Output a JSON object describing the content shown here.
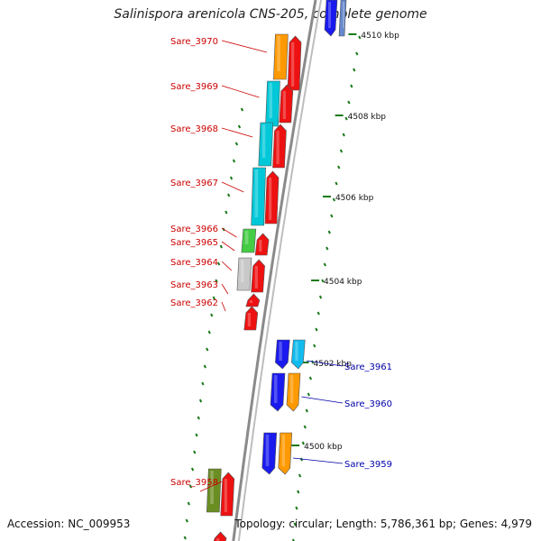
{
  "title": "Salinispora arenicola CNS-205, complete genome",
  "footer": {
    "accession": "Accession: NC_009953",
    "topology": "Topology: circular; Length: 5,786,361 bp; Genes: 4,979"
  },
  "colors": {
    "label_left": "#cc0000",
    "label_right": "#0000aa",
    "tick": "#1a7a1a",
    "red": "#ee1111",
    "orange": "#ff9900",
    "cyan": "#00c8d8",
    "green": "#44cc44",
    "gray": "#c8c8c8",
    "olive": "#6b8e23",
    "blue": "#1a1aee",
    "skyblue": "#11bbee"
  },
  "kbp_ticks": [
    {
      "label": "4510 kbp"
    },
    {
      "label": "4508 kbp"
    },
    {
      "label": "4506 kbp"
    },
    {
      "label": "4504 kbp"
    },
    {
      "label": "4502 kbp"
    },
    {
      "label": "4500 kbp"
    }
  ],
  "genes_left": [
    {
      "name": "Sare_3970",
      "color": "orange"
    },
    {
      "name": "Sare_3969",
      "color": "cyan"
    },
    {
      "name": "Sare_3968",
      "color": "cyan"
    },
    {
      "name": "Sare_3967",
      "color": "cyan"
    },
    {
      "name": "Sare_3966",
      "color": "green"
    },
    {
      "name": "Sare_3965",
      "color": "green"
    },
    {
      "name": "Sare_3964",
      "color": "gray"
    },
    {
      "name": "Sare_3963",
      "color": "gray"
    },
    {
      "name": "Sare_3962",
      "color": "red"
    },
    {
      "name": "Sare_3958",
      "color": "olive"
    }
  ],
  "genes_right": [
    {
      "name": "Sare_3961",
      "color": "skyblue"
    },
    {
      "name": "Sare_3960",
      "color": "orange"
    },
    {
      "name": "Sare_3959",
      "color": "orange"
    }
  ]
}
